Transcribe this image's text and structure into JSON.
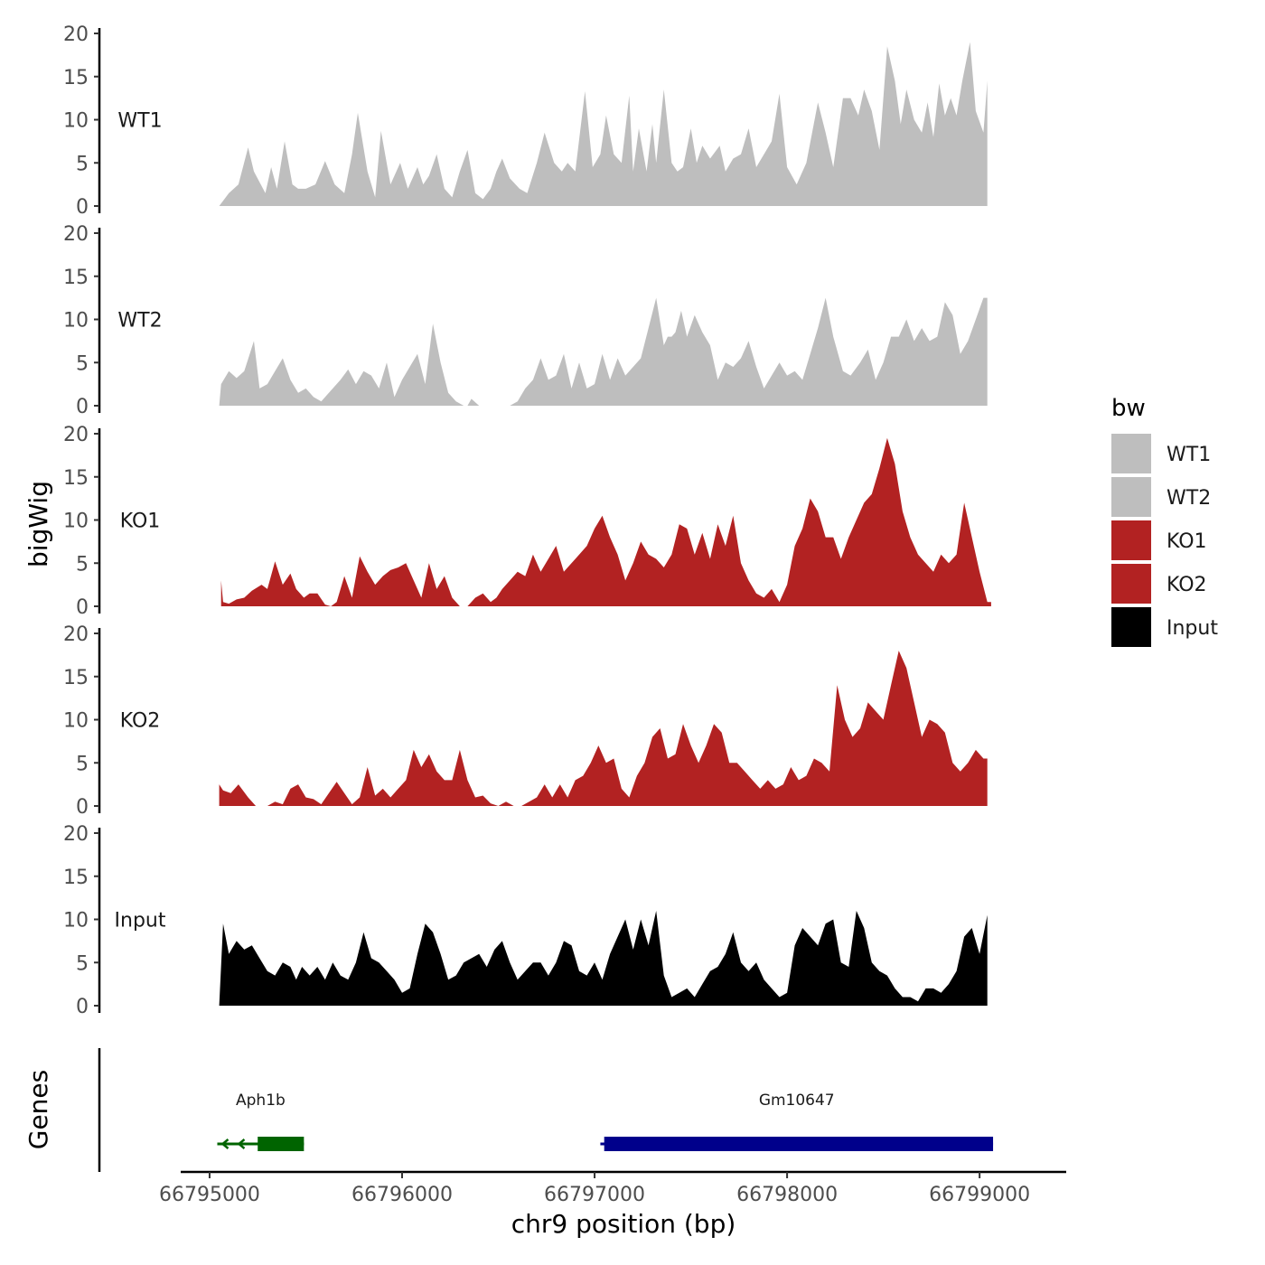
{
  "chart_data": {
    "type": "area",
    "xlabel": "chr9 position (bp)",
    "ylabel": "bigWig",
    "genes_label": "Genes",
    "xlim": [
      66794850,
      66799450
    ],
    "ylim": [
      0,
      20
    ],
    "x_ticks": [
      66795000,
      66796000,
      66797000,
      66798000,
      66799000
    ],
    "x_tick_labels": [
      "66795000",
      "66796000",
      "66797000",
      "66798000",
      "66799000"
    ],
    "y_ticks": [
      0,
      5,
      10,
      15,
      20
    ],
    "y_tick_labels": [
      "0",
      "5",
      "10",
      "15",
      "20"
    ],
    "legend": {
      "title": "bw",
      "placement": "right",
      "entries": [
        {
          "label": "WT1",
          "color": "#bebebe"
        },
        {
          "label": "WT2",
          "color": "#bebebe"
        },
        {
          "label": "KO1",
          "color": "#b22222"
        },
        {
          "label": "KO2",
          "color": "#b22222"
        },
        {
          "label": "Input",
          "color": "#000000"
        }
      ]
    },
    "series": [
      {
        "name": "WT1",
        "color": "#bebebe",
        "x": [
          66795050,
          66795100,
          66795150,
          66795200,
          66795230,
          66795290,
          66795320,
          66795350,
          66795390,
          66795430,
          66795460,
          66795500,
          66795550,
          66795600,
          66795650,
          66795700,
          66795740,
          66795770,
          66795820,
          66795860,
          66795890,
          66795940,
          66795990,
          66796030,
          66796080,
          66796110,
          66796140,
          66796180,
          66796220,
          66796260,
          66796300,
          66796340,
          66796380,
          66796420,
          66796460,
          66796490,
          66796520,
          66796560,
          66796610,
          66796650,
          66796700,
          66796740,
          66796790,
          66796830,
          66796860,
          66796900,
          66796950,
          66796990,
          66797030,
          66797060,
          66797100,
          66797140,
          66797180,
          66797200,
          66797230,
          66797270,
          66797300,
          66797320,
          66797360,
          66797400,
          66797430,
          66797460,
          66797500,
          66797530,
          66797560,
          66797600,
          66797650,
          66797680,
          66797720,
          66797760,
          66797800,
          66797840,
          66797880,
          66797920,
          66797960,
          66798000,
          66798050,
          66798100,
          66798160,
          66798200,
          66798240,
          66798290,
          66798330,
          66798370,
          66798400,
          66798440,
          66798480,
          66798520,
          66798560,
          66798590,
          66798620,
          66798660,
          66798700,
          66798730,
          66798760,
          66798790,
          66798820,
          66798850,
          66798880,
          66798910,
          66798950,
          66798980,
          66799020,
          66799040
        ],
        "y": [
          0,
          1.5,
          2.5,
          6.8,
          4,
          1.5,
          4.5,
          2,
          7.5,
          2.5,
          2,
          2,
          2.5,
          5.2,
          2.5,
          1.5,
          6,
          10.8,
          4,
          1,
          8.7,
          2.5,
          5,
          2,
          4.5,
          2.5,
          3.5,
          6,
          2,
          1,
          4,
          6.5,
          1.5,
          0.8,
          2,
          4,
          5.5,
          3.2,
          2,
          1.5,
          5,
          8.5,
          5,
          4,
          5,
          4,
          13.3,
          4.5,
          6,
          10.5,
          6,
          5,
          12.8,
          4,
          9,
          4,
          9.5,
          5,
          13.5,
          5,
          4,
          4.5,
          9,
          5,
          7,
          5.5,
          7,
          4,
          5.5,
          6,
          9,
          4.5,
          6,
          7.5,
          13,
          4.5,
          2.5,
          5,
          12,
          8.5,
          4.5,
          12.5,
          12.5,
          10.5,
          13.5,
          11,
          6.5,
          18.5,
          14.5,
          9.5,
          13.5,
          10,
          8.5,
          12,
          8,
          14.2,
          10.5,
          12.5,
          10.5,
          14.5,
          19,
          11,
          8.5,
          14.5
        ]
      },
      {
        "name": "WT2",
        "color": "#bebebe",
        "x": [
          66795050,
          66795060,
          66795100,
          66795140,
          66795180,
          66795230,
          66795260,
          66795300,
          66795340,
          66795380,
          66795420,
          66795460,
          66795500,
          66795540,
          66795580,
          66795640,
          66795680,
          66795720,
          66795760,
          66795800,
          66795840,
          66795880,
          66795920,
          66795960,
          66796000,
          66796040,
          66796080,
          66796120,
          66796160,
          66796200,
          66796240,
          66796280,
          66796320,
          66796340,
          66796360,
          66796400,
          66796440,
          66796480,
          66796520,
          66796560,
          66796600,
          66796640,
          66796680,
          66796720,
          66796760,
          66796800,
          66796840,
          66796880,
          66796920,
          66796960,
          66797000,
          66797040,
          66797080,
          66797120,
          66797160,
          66797200,
          66797240,
          66797280,
          66797320,
          66797360,
          66797380,
          66797400,
          66797420,
          66797450,
          66797480,
          66797520,
          66797560,
          66797600,
          66797640,
          66797680,
          66797720,
          66797760,
          66797800,
          66797840,
          66797880,
          66797920,
          66797960,
          66798000,
          66798040,
          66798080,
          66798120,
          66798160,
          66798200,
          66798240,
          66798290,
          66798330,
          66798380,
          66798420,
          66798460,
          66798500,
          66798540,
          66798580,
          66798620,
          66798660,
          66798700,
          66798740,
          66798780,
          66798820,
          66798860,
          66798900,
          66798940,
          66798980,
          66799020,
          66799040
        ],
        "y": [
          0,
          2.5,
          4,
          3.2,
          4,
          7.5,
          2,
          2.5,
          4,
          5.5,
          3,
          1.5,
          2,
          1,
          0.5,
          2,
          3,
          4.2,
          2.5,
          4,
          3.5,
          2,
          5,
          1,
          3,
          4.5,
          6,
          2.5,
          9.5,
          5,
          1.5,
          0.5,
          0,
          0,
          0.8,
          0,
          0,
          0,
          0,
          0,
          0.5,
          2,
          3,
          5.5,
          3,
          3.5,
          6,
          2,
          5,
          2,
          2.5,
          6,
          3,
          5.5,
          3.5,
          4.5,
          5.5,
          9,
          12.5,
          7,
          8,
          8,
          8.5,
          11,
          8,
          10.5,
          8.5,
          7,
          3,
          5,
          4.5,
          5.5,
          7.5,
          4.5,
          2,
          3.5,
          5,
          3.5,
          4,
          3,
          6,
          9,
          12.5,
          8,
          4,
          3.5,
          5,
          6.5,
          3,
          5,
          8,
          8,
          10,
          7.5,
          9,
          7.5,
          8,
          12,
          10.5,
          6,
          7.5,
          10,
          12.5,
          12.5
        ]
      },
      {
        "name": "KO1",
        "color": "#b22222",
        "x": [
          66795060,
          66795070,
          66795100,
          66795140,
          66795180,
          66795220,
          66795270,
          66795300,
          66795340,
          66795380,
          66795420,
          66795450,
          66795490,
          66795520,
          66795560,
          66795600,
          66795630,
          66795660,
          66795700,
          66795740,
          66795780,
          66795820,
          66795860,
          66795900,
          66795940,
          66795980,
          66796020,
          66796060,
          66796100,
          66796140,
          66796180,
          66796220,
          66796260,
          66796300,
          66796340,
          66796380,
          66796420,
          66796460,
          66796490,
          66796520,
          66796560,
          66796600,
          66796640,
          66796680,
          66796720,
          66796760,
          66796800,
          66796840,
          66796880,
          66796920,
          66796960,
          66797000,
          66797040,
          66797080,
          66797120,
          66797160,
          66797200,
          66797240,
          66797280,
          66797320,
          66797360,
          66797400,
          66797440,
          66797480,
          66797520,
          66797560,
          66797600,
          66797640,
          66797680,
          66797720,
          66797760,
          66797800,
          66797840,
          66797880,
          66797920,
          66797960,
          66798000,
          66798040,
          66798080,
          66798120,
          66798160,
          66798200,
          66798240,
          66798280,
          66798320,
          66798360,
          66798400,
          66798440,
          66798480,
          66798520,
          66798560,
          66798600,
          66798640,
          66798680,
          66798720,
          66798760,
          66798800,
          66798840,
          66798880,
          66798920,
          66798960,
          66799000,
          66799040,
          66799060
        ],
        "y": [
          3,
          0.5,
          0.3,
          0.8,
          1,
          1.8,
          2.5,
          2,
          5.2,
          2.5,
          3.8,
          2,
          1,
          1.5,
          1.5,
          0.2,
          0,
          0.5,
          3.5,
          1,
          5.8,
          4,
          2.5,
          3.5,
          4.2,
          4.5,
          5,
          3,
          1,
          5,
          2,
          3.5,
          1,
          0,
          0,
          1,
          1.5,
          0.5,
          1,
          2,
          3,
          4,
          3.5,
          6,
          4,
          5.5,
          7,
          4,
          5,
          6,
          7,
          9,
          10.5,
          8,
          6,
          3,
          5,
          7.5,
          6,
          5.5,
          4.5,
          6,
          9.5,
          9,
          6,
          8.5,
          5.5,
          9.5,
          7,
          10.5,
          5,
          3,
          1.5,
          1,
          2,
          0.5,
          2.5,
          7,
          9,
          12.5,
          11,
          8,
          8,
          5.5,
          8,
          10,
          12,
          13,
          16,
          19.5,
          16.5,
          11,
          8,
          6,
          5,
          4,
          6,
          5,
          6,
          12,
          8,
          4,
          0.5,
          0.5
        ]
      },
      {
        "name": "KO2",
        "color": "#b22222",
        "x": [
          66795050,
          66795070,
          66795110,
          66795150,
          66795200,
          66795240,
          66795260,
          66795300,
          66795340,
          66795380,
          66795420,
          66795460,
          66795500,
          66795540,
          66795580,
          66795620,
          66795660,
          66795700,
          66795740,
          66795780,
          66795820,
          66795860,
          66795900,
          66795940,
          66795980,
          66796020,
          66796060,
          66796100,
          66796140,
          66796180,
          66796220,
          66796260,
          66796300,
          66796340,
          66796380,
          66796420,
          66796460,
          66796500,
          66796540,
          66796580,
          66796620,
          66796660,
          66796700,
          66796740,
          66796780,
          66796820,
          66796860,
          66796900,
          66796940,
          66796980,
          66797020,
          66797060,
          66797100,
          66797140,
          66797180,
          66797220,
          66797260,
          66797300,
          66797340,
          66797380,
          66797420,
          66797460,
          66797500,
          66797540,
          66797580,
          66797620,
          66797660,
          66797700,
          66797740,
          66797780,
          66797820,
          66797860,
          66797900,
          66797940,
          66797980,
          66798020,
          66798060,
          66798100,
          66798140,
          66798180,
          66798220,
          66798260,
          66798300,
          66798340,
          66798380,
          66798420,
          66798460,
          66798500,
          66798540,
          66798580,
          66798620,
          66798660,
          66798700,
          66798740,
          66798780,
          66798820,
          66798860,
          66798900,
          66798940,
          66798980,
          66799020,
          66799040
        ],
        "y": [
          2.5,
          1.8,
          1.5,
          2.5,
          1,
          0,
          0,
          0,
          0.5,
          0.2,
          2,
          2.5,
          1,
          0.8,
          0.2,
          1.5,
          2.8,
          1.5,
          0.2,
          1,
          4.5,
          1.2,
          2,
          1,
          2,
          3,
          6.5,
          4.5,
          6,
          4,
          3,
          3,
          6.5,
          3,
          1,
          1.2,
          0.3,
          0,
          0.5,
          0,
          0,
          0.5,
          1,
          2.5,
          1,
          2.5,
          1,
          3,
          3.5,
          5,
          7,
          5,
          5.5,
          2,
          1,
          3.5,
          5,
          8,
          9,
          5.5,
          6,
          9.5,
          7,
          5,
          7,
          9.5,
          8.5,
          5,
          5,
          4,
          3,
          2,
          3,
          2,
          2.5,
          4.5,
          3,
          3.5,
          5.5,
          5,
          4,
          14,
          10,
          8,
          9,
          12,
          11,
          10,
          14,
          18,
          16,
          12,
          8,
          10,
          9.5,
          8.5,
          5,
          4,
          5,
          6.5,
          5.5,
          5.5
        ]
      },
      {
        "name": "Input",
        "color": "#000000",
        "x": [
          66795050,
          66795070,
          66795100,
          66795140,
          66795180,
          66795220,
          66795260,
          66795300,
          66795340,
          66795380,
          66795420,
          66795450,
          66795480,
          66795520,
          66795560,
          66795600,
          66795640,
          66795680,
          66795720,
          66795760,
          66795800,
          66795840,
          66795880,
          66795920,
          66795960,
          66796000,
          66796040,
          66796080,
          66796120,
          66796160,
          66796200,
          66796240,
          66796280,
          66796320,
          66796360,
          66796400,
          66796440,
          66796480,
          66796520,
          66796560,
          66796600,
          66796640,
          66796680,
          66796720,
          66796760,
          66796800,
          66796840,
          66796880,
          66796920,
          66796960,
          66797000,
          66797040,
          66797080,
          66797120,
          66797160,
          66797200,
          66797240,
          66797280,
          66797320,
          66797360,
          66797400,
          66797440,
          66797480,
          66797520,
          66797560,
          66797600,
          66797640,
          66797680,
          66797720,
          66797760,
          66797800,
          66797840,
          66797880,
          66797920,
          66797960,
          66798000,
          66798040,
          66798080,
          66798120,
          66798160,
          66798200,
          66798240,
          66798280,
          66798320,
          66798360,
          66798400,
          66798440,
          66798480,
          66798520,
          66798560,
          66798600,
          66798640,
          66798680,
          66798720,
          66798760,
          66798800,
          66798840,
          66798880,
          66798920,
          66798960,
          66799000,
          66799040
        ],
        "y": [
          0,
          9.5,
          6,
          7.5,
          6.5,
          7,
          5.5,
          4,
          3.5,
          5,
          4.5,
          3,
          4.5,
          3.5,
          4.5,
          3,
          5,
          3.5,
          3,
          5,
          8.5,
          5.5,
          5,
          4,
          3,
          1.5,
          2,
          6,
          9.5,
          8.5,
          6,
          3,
          3.5,
          5,
          5.5,
          6,
          4.5,
          6.5,
          7.5,
          5,
          3,
          4,
          5,
          5,
          3.5,
          5,
          7.5,
          7,
          4,
          3.5,
          5,
          3,
          6,
          8,
          10,
          6.5,
          10,
          7,
          11,
          3.5,
          1,
          1.5,
          2,
          1,
          2.5,
          4,
          4.5,
          6,
          8.5,
          5,
          4,
          5,
          3,
          2,
          1,
          1.5,
          7,
          9,
          8,
          7,
          9.5,
          10,
          5,
          4.5,
          11,
          9,
          5,
          4,
          3.5,
          2,
          1,
          1,
          0.5,
          2,
          2,
          1.5,
          2.5,
          4,
          8,
          9,
          6,
          10.5
        ]
      }
    ],
    "genes": [
      {
        "name": "Aph1b",
        "strand": "-",
        "start": 66795040,
        "end": 66795490,
        "thick_start": 66795250,
        "thick_end": 66795490,
        "color": "#006400"
      },
      {
        "name": "Gm10647",
        "strand": "+",
        "start": 66797030,
        "end": 66799070,
        "thick_start": 66797050,
        "thick_end": 66799070,
        "color": "#00008b"
      }
    ]
  }
}
